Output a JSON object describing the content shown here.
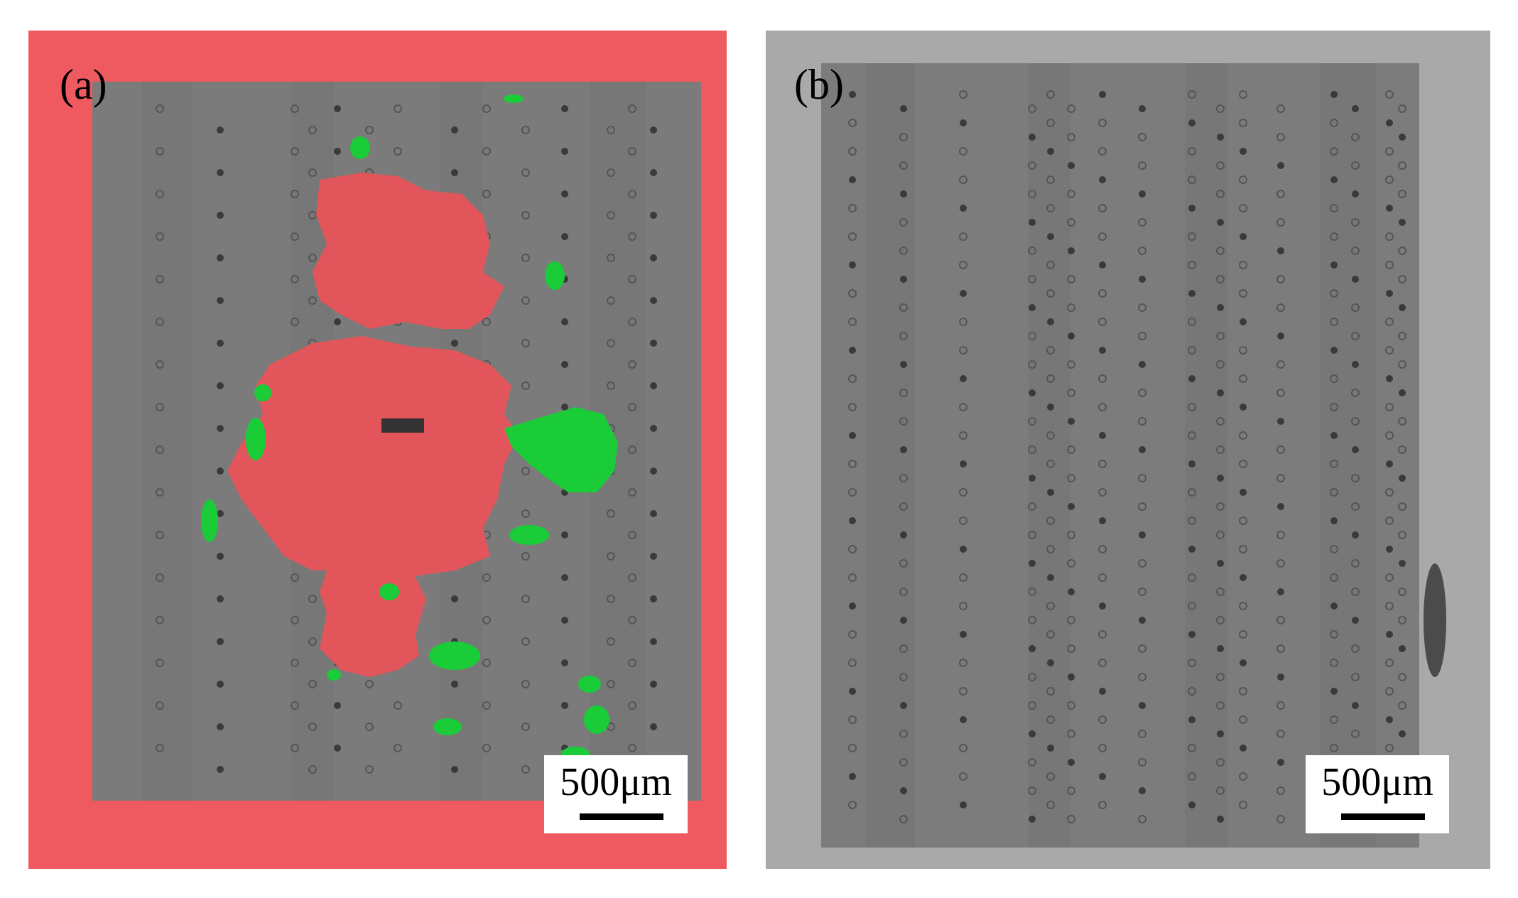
{
  "figure": {
    "panels": [
      {
        "id": "a",
        "label": "(a)",
        "scale_bar": {
          "text": "500μm",
          "length_um": 500
        },
        "colors": {
          "background": "#ee5a5f",
          "die": "#7a7a7a",
          "defect_red": "#e2565b",
          "defect_green": "#19cc38"
        }
      },
      {
        "id": "b",
        "label": "(b)",
        "scale_bar": {
          "text": "500μm",
          "length_um": 500
        },
        "colors": {
          "background": "#a9a9a9",
          "die": "#7b7b7b"
        }
      }
    ]
  }
}
